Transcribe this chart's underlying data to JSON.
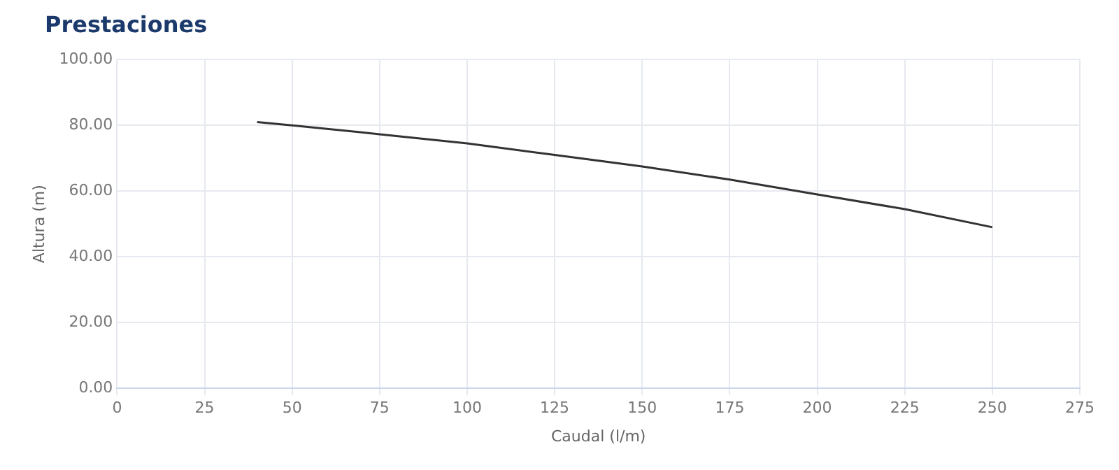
{
  "chart_data": {
    "type": "line",
    "title": "Prestaciones",
    "xlabel": "Caudal (l/m)",
    "ylabel": "Altura (m)",
    "x": [
      40,
      50,
      75,
      100,
      125,
      150,
      175,
      200,
      225,
      250
    ],
    "series": [
      {
        "color": "#333333",
        "values": [
          81,
          80,
          77.3,
          74.5,
          71,
          67.5,
          63.5,
          59,
          54.5,
          49
        ]
      }
    ],
    "xlim": [
      0,
      275
    ],
    "xticks": [
      0,
      25,
      50,
      75,
      100,
      125,
      150,
      175,
      200,
      225,
      250,
      275
    ],
    "ylim": [
      0,
      100
    ],
    "yticks": [
      {
        "value": 0,
        "label": "0.00"
      },
      {
        "value": 20,
        "label": "20.00"
      },
      {
        "value": 40,
        "label": "40.00"
      },
      {
        "value": 60,
        "label": "60.00"
      },
      {
        "value": 80,
        "label": "80.00"
      },
      {
        "value": 100,
        "label": "100.00"
      }
    ],
    "grid": true,
    "legend": false,
    "marker": "none",
    "line_style": "solid"
  }
}
